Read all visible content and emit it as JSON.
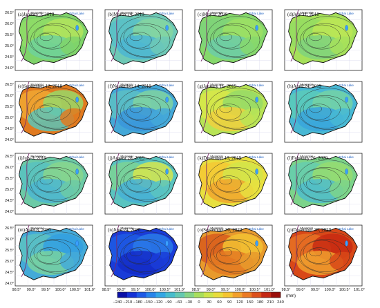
{
  "figure": {
    "y_ticks": [
      "26.5°",
      "26.0°",
      "25.5°",
      "25.0°",
      "24.5°",
      "24.0°"
    ],
    "x_ticks": [
      "98.5°",
      "99.0°",
      "99.5°",
      "100.0°",
      "100.5°",
      "101.0°"
    ],
    "map_labels": {
      "country": "Myanmar",
      "lake": "Erhai Lake"
    }
  },
  "panels": [
    {
      "title": "(a)January 3, 2018",
      "palette": [
        "#7fd36a",
        "#8fdc66",
        "#b4e45c",
        "#6fd19a"
      ]
    },
    {
      "title": "(b)March 14, 2018",
      "palette": [
        "#6ec9b6",
        "#58bfc8",
        "#86d6a0",
        "#4cb6d2"
      ]
    },
    {
      "title": "(c)May 9, 2018",
      "palette": [
        "#86d86c",
        "#7ed37a",
        "#9ee064",
        "#6ccda8"
      ]
    },
    {
      "title": "(d)July 11, 2018",
      "palette": [
        "#a6e05a",
        "#94dc62",
        "#bce656",
        "#7fd27e"
      ]
    },
    {
      "title": "(e)September 12, 2018",
      "palette": [
        "#e07a20",
        "#f0a832",
        "#98d868",
        "#5cc4b8"
      ]
    },
    {
      "title": "(f)November 14, 2018",
      "palette": [
        "#44a8d8",
        "#5cc0c4",
        "#80d4a0",
        "#3a96dc"
      ]
    },
    {
      "title": "(g)January 16, 2019",
      "palette": [
        "#b8e456",
        "#d8e848",
        "#96da66",
        "#eed03e"
      ]
    },
    {
      "title": "(h)April 24, 2019",
      "palette": [
        "#48b8d4",
        "#5ccab8",
        "#76d2a4",
        "#3aa4dc"
      ]
    },
    {
      "title": "(i)July 3, 2019",
      "palette": [
        "#6ccaa6",
        "#58c2c0",
        "#88d68c",
        "#4cb6d0"
      ]
    },
    {
      "title": "(j)August 28, 2019",
      "palette": [
        "#5ac4c0",
        "#7cd494",
        "#d6e64c",
        "#46b0d6"
      ]
    },
    {
      "title": "(k)December 18, 2019",
      "palette": [
        "#e8e040",
        "#f4c834",
        "#d2e44a",
        "#f0a62e"
      ]
    },
    {
      "title": "(l)February 26, 2020",
      "palette": [
        "#7cd48a",
        "#66ccae",
        "#96dc70",
        "#50bcca"
      ]
    },
    {
      "title": "(m)April 8, 2020",
      "palette": [
        "#44aad8",
        "#5cc2c2",
        "#32a0e0",
        "#78d2a0"
      ]
    },
    {
      "title": "(n)June 24, 2020",
      "palette": [
        "#1a3cd8",
        "#1e5ae4",
        "#2a7ae8",
        "#142cc8"
      ]
    },
    {
      "title": "(o)September 30, 2020",
      "palette": [
        "#e89a2c",
        "#d85c1c",
        "#f2c232",
        "#e47a22"
      ]
    },
    {
      "title": "(p)December 30, 2020",
      "palette": [
        "#d84818",
        "#e87224",
        "#c82a12",
        "#f0a02e"
      ]
    }
  ],
  "colorbar": {
    "ticks": [
      "−240",
      "−210",
      "−180",
      "−150",
      "−120",
      "−90",
      "−60",
      "−30",
      "0",
      "30",
      "60",
      "90",
      "120",
      "150",
      "180",
      "210",
      "240"
    ],
    "unit": "(mm)",
    "colors": [
      "#0a10a8",
      "#1432d6",
      "#1e5ae6",
      "#2884ea",
      "#34a6e4",
      "#48bccc",
      "#66c8b0",
      "#86d486",
      "#a8de5c",
      "#cce44a",
      "#e8dc3c",
      "#f4c432",
      "#f2a02c",
      "#ea7a24",
      "#dc501c",
      "#c42814",
      "#9a0e0a"
    ]
  }
}
